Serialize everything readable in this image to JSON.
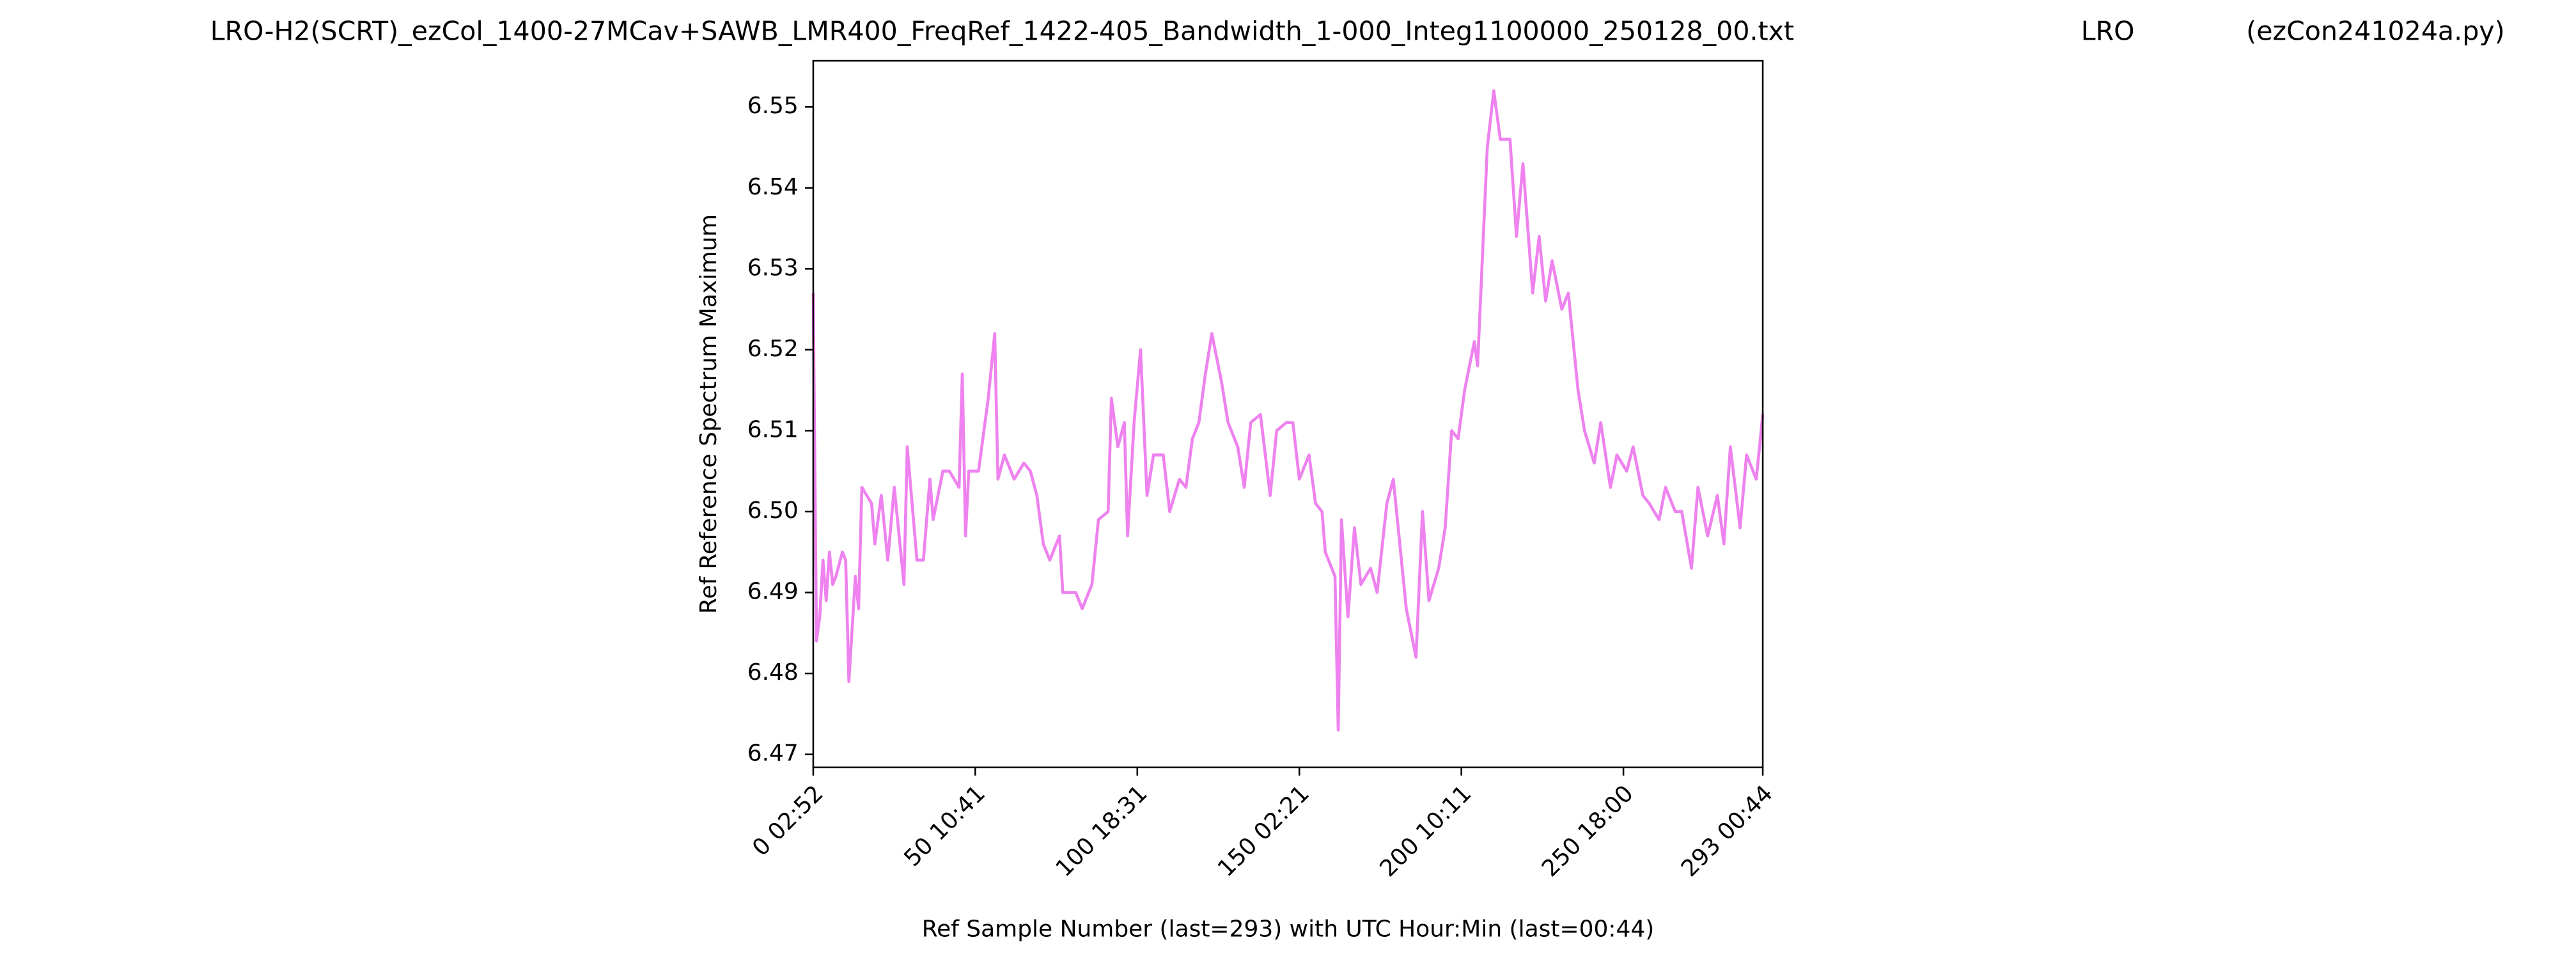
{
  "chart_data": {
    "type": "line",
    "title": "LRO-H2(SCRT)_ezCol_1400-27MCav+SAWB_LMR400_FreqRef_1422-405_Bandwidth_1-000_Integ1100000_250128_00.txt",
    "title_center": "LRO",
    "title_right": "(ezCon241024a.py)",
    "xlabel": "Ref Sample Number (last=293) with UTC Hour:Min (last=00:44)",
    "ylabel": "Ref Reference Spectrum Maximum",
    "color": "#ee82ee",
    "xlim": [
      0,
      293
    ],
    "ylim": [
      6.4684,
      6.5557
    ],
    "xticks": [
      {
        "value": 0,
        "label": "0  02:52"
      },
      {
        "value": 50,
        "label": "50  10:41"
      },
      {
        "value": 100,
        "label": "100  18:31"
      },
      {
        "value": 150,
        "label": "150  02:21"
      },
      {
        "value": 200,
        "label": "200  10:11"
      },
      {
        "value": 250,
        "label": "250  18:00"
      },
      {
        "value": 293,
        "label": "293  00:44"
      }
    ],
    "yticks": [
      6.47,
      6.48,
      6.49,
      {
        "value": 6.5,
        "label": "6.50"
      },
      6.51,
      6.52,
      6.53,
      6.54,
      6.55
    ],
    "x": [
      0,
      1,
      2,
      3,
      4,
      5,
      6,
      7,
      9,
      10,
      11,
      13,
      14,
      15,
      18,
      19,
      21,
      23,
      25,
      28,
      29,
      32,
      34,
      36,
      37,
      40,
      42,
      45,
      46,
      47,
      48,
      51,
      54,
      56,
      57,
      59,
      62,
      65,
      67,
      69,
      71,
      73,
      76,
      77,
      81,
      83,
      86,
      88,
      91,
      92,
      94,
      96,
      97,
      99,
      101,
      103,
      105,
      108,
      110,
      113,
      115,
      117,
      119,
      121,
      123,
      126,
      128,
      131,
      133,
      135,
      138,
      141,
      143,
      146,
      148,
      150,
      153,
      155,
      157,
      158,
      161,
      162,
      163,
      165,
      167,
      169,
      172,
      174,
      177,
      179,
      181,
      183,
      186,
      188,
      190,
      193,
      195,
      197,
      199,
      201,
      204,
      205,
      208,
      210,
      212,
      215,
      217,
      219,
      222,
      224,
      226,
      228,
      231,
      233,
      236,
      238,
      241,
      243,
      246,
      248,
      251,
      253,
      256,
      258,
      261,
      263,
      266,
      268,
      271,
      273,
      276,
      279,
      281,
      283,
      286,
      288,
      291,
      293
    ],
    "values": [
      6.527,
      6.484,
      6.487,
      6.494,
      6.489,
      6.495,
      6.491,
      6.492,
      6.495,
      6.494,
      6.479,
      6.492,
      6.488,
      6.503,
      6.501,
      6.496,
      6.502,
      6.494,
      6.503,
      6.491,
      6.508,
      6.494,
      6.494,
      6.504,
      6.499,
      6.505,
      6.505,
      6.503,
      6.517,
      6.497,
      6.505,
      6.505,
      6.514,
      6.522,
      6.504,
      6.507,
      6.504,
      6.506,
      6.505,
      6.502,
      6.496,
      6.494,
      6.497,
      6.49,
      6.49,
      6.488,
      6.491,
      6.499,
      6.5,
      6.514,
      6.508,
      6.511,
      6.497,
      6.511,
      6.52,
      6.502,
      6.507,
      6.507,
      6.5,
      6.504,
      6.503,
      6.509,
      6.511,
      6.517,
      6.522,
      6.516,
      6.511,
      6.508,
      6.503,
      6.511,
      6.512,
      6.502,
      6.51,
      6.511,
      6.511,
      6.504,
      6.507,
      6.501,
      6.5,
      6.495,
      6.492,
      6.473,
      6.499,
      6.487,
      6.498,
      6.491,
      6.493,
      6.49,
      6.501,
      6.504,
      6.496,
      6.488,
      6.482,
      6.5,
      6.489,
      6.493,
      6.498,
      6.51,
      6.509,
      6.515,
      6.521,
      6.518,
      6.545,
      6.552,
      6.546,
      6.546,
      6.534,
      6.543,
      6.527,
      6.534,
      6.526,
      6.531,
      6.525,
      6.527,
      6.515,
      6.51,
      6.506,
      6.511,
      6.503,
      6.507,
      6.505,
      6.508,
      6.502,
      6.501,
      6.499,
      6.503,
      6.5,
      6.5,
      6.493,
      6.503,
      6.497,
      6.502,
      6.496,
      6.508,
      6.498,
      6.507,
      6.504,
      6.512
    ]
  }
}
